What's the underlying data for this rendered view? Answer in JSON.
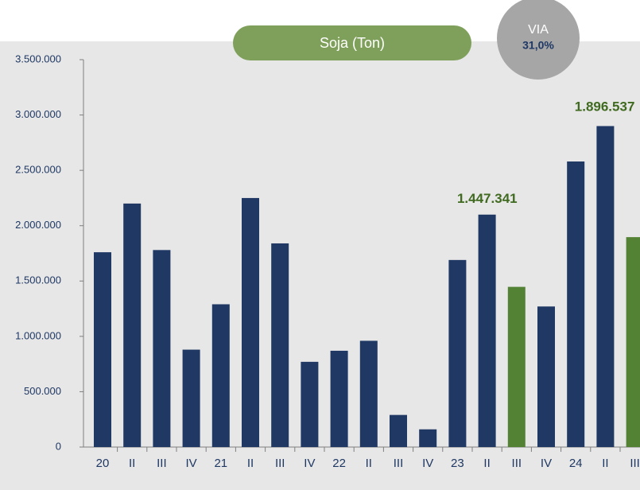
{
  "chart_data": {
    "type": "bar",
    "title": "Soja (Ton)",
    "badge": {
      "label": "VIA",
      "value": "31,0%"
    },
    "categories": [
      "20",
      "II",
      "III",
      "IV",
      "21",
      "II",
      "III",
      "IV",
      "22",
      "II",
      "III",
      "IV",
      "23",
      "II",
      "III",
      "IV",
      "24",
      "II",
      "III"
    ],
    "values": [
      1760000,
      2200000,
      1780000,
      880000,
      1290000,
      2250000,
      1840000,
      770000,
      870000,
      960000,
      290000,
      160000,
      1690000,
      2100000,
      1447341,
      1270000,
      2580000,
      2900000,
      1896537
    ],
    "colors": [
      "#1f3864",
      "#1f3864",
      "#1f3864",
      "#1f3864",
      "#1f3864",
      "#1f3864",
      "#1f3864",
      "#1f3864",
      "#1f3864",
      "#1f3864",
      "#1f3864",
      "#1f3864",
      "#1f3864",
      "#1f3864",
      "#548235",
      "#1f3864",
      "#1f3864",
      "#1f3864",
      "#548235"
    ],
    "value_labels": [
      null,
      null,
      null,
      null,
      null,
      null,
      null,
      null,
      null,
      null,
      null,
      null,
      null,
      null,
      "1.447.341",
      null,
      null,
      null,
      "1.896.537"
    ],
    "ylim": [
      0,
      3500000
    ],
    "yticks": [
      0,
      {
        "value": 500000,
        "label": "500.000"
      },
      {
        "value": 1000000,
        "label": "1.000.000"
      },
      {
        "value": 1500000,
        "label": "1.500.000"
      },
      {
        "value": 2000000,
        "label": "2.000.000"
      },
      {
        "value": 2500000,
        "label": "2.500.000"
      },
      {
        "value": 3000000,
        "label": "3.000.000"
      },
      {
        "value": 3500000,
        "label": "3.500.000"
      }
    ]
  }
}
